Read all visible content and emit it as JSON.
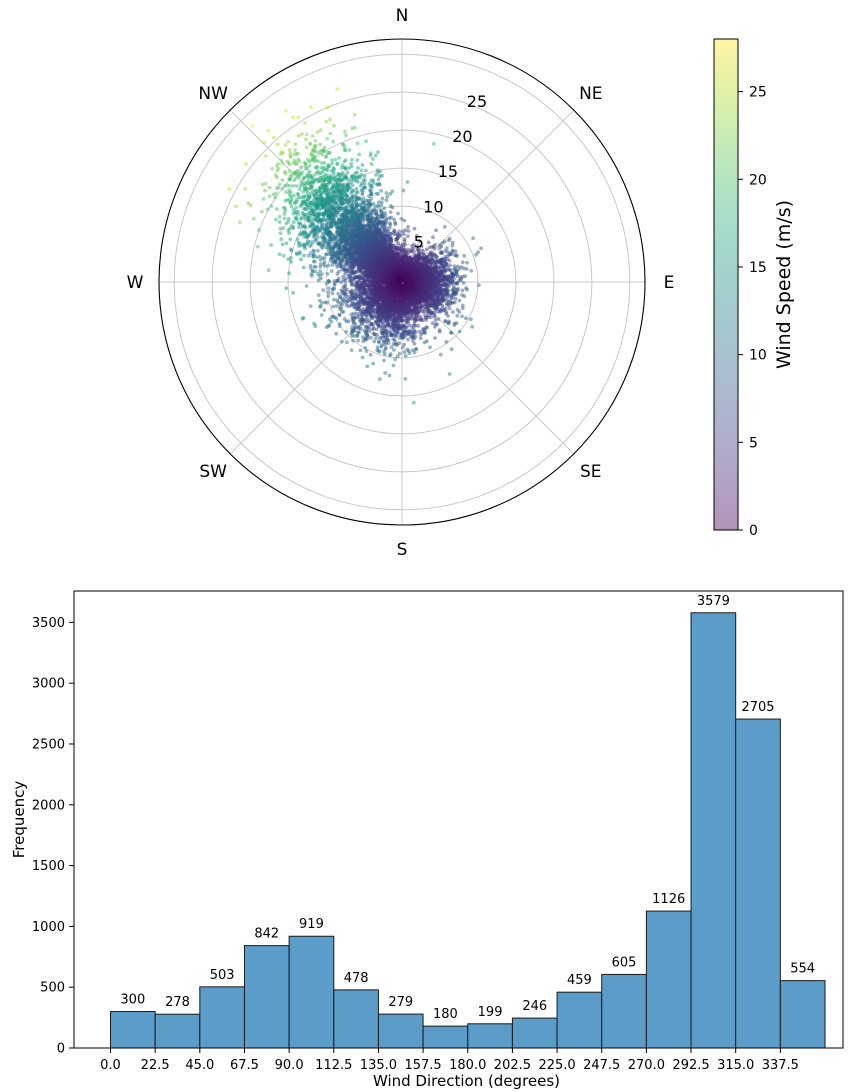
{
  "chart_data": [
    {
      "type": "scatter",
      "projection": "polar",
      "title": "",
      "theta_labels": [
        "N",
        "NE",
        "E",
        "SE",
        "S",
        "SW",
        "W",
        "NW"
      ],
      "theta_zero": "N",
      "theta_direction": "clockwise",
      "r_ticks": [
        "5",
        "10",
        "15",
        "20",
        "25"
      ],
      "rlim": [
        0,
        32
      ],
      "grid": true,
      "point_color_map": "viridis",
      "point_alpha": 0.5,
      "point_count": 11752,
      "cloud_description": "dense cluster near center elongated toward NW; speeds mostly under 10 m/s, reaching about 28 m/s toward NW",
      "colorbar": {
        "label": "Wind Speed (m/s)",
        "ticks": [
          "0",
          "5",
          "10",
          "15",
          "20",
          "25"
        ],
        "range": [
          0,
          28
        ],
        "colors": [
          "#440154",
          "#3b528b",
          "#21918c",
          "#5ec962",
          "#fde725"
        ]
      }
    },
    {
      "type": "bar",
      "subtype": "histogram",
      "title": "",
      "xlabel": "Wind Direction (degrees)",
      "ylabel": "Frequency",
      "bin_edges": [
        0,
        22.5,
        45,
        67.5,
        90,
        112.5,
        135,
        157.5,
        180,
        202.5,
        225,
        247.5,
        270,
        292.5,
        315,
        337.5,
        360
      ],
      "x_tick_labels": [
        "0.0",
        "22.5",
        "45.0",
        "67.5",
        "90.0",
        "112.5",
        "135.0",
        "157.5",
        "180.0",
        "202.5",
        "225.0",
        "247.5",
        "270.0",
        "292.5",
        "315.0",
        "337.5"
      ],
      "values": [
        300,
        278,
        503,
        842,
        919,
        478,
        279,
        180,
        199,
        246,
        459,
        605,
        1126,
        3579,
        2705,
        554
      ],
      "y_ticks": [
        "0",
        "500",
        "1000",
        "1500",
        "2000",
        "2500",
        "3000",
        "3500"
      ],
      "ylim": [
        0,
        3758
      ],
      "bar_color": "#5b9cc9",
      "edge_color": "#1a1a1a",
      "grid": false
    }
  ]
}
